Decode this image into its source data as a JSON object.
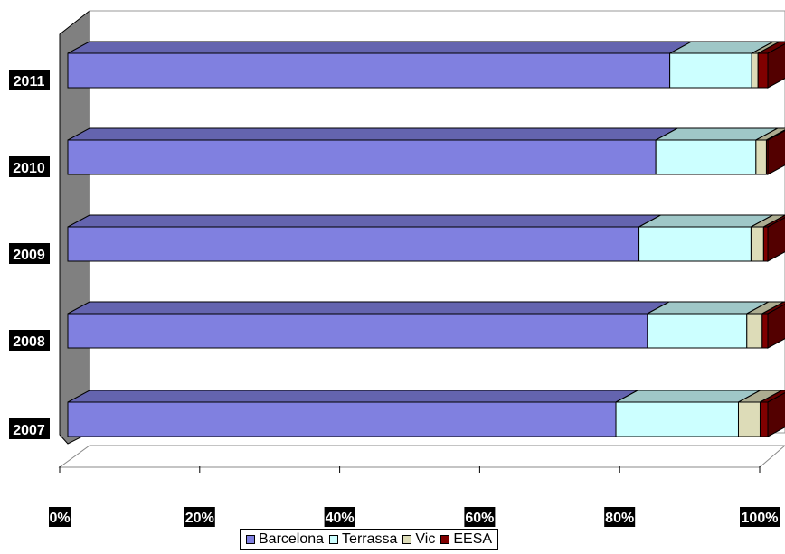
{
  "chart_data": {
    "type": "bar",
    "orientation": "horizontal",
    "stacked": "percent",
    "categories": [
      "2007",
      "2008",
      "2009",
      "2010",
      "2011"
    ],
    "series": [
      {
        "name": "Barcelona",
        "color": "#8080E0",
        "values": [
          78.3,
          82.8,
          81.6,
          84.0,
          86.0
        ]
      },
      {
        "name": "Terrassa",
        "color": "#CCFFFF",
        "values": [
          17.5,
          14.2,
          16.0,
          14.3,
          11.7
        ]
      },
      {
        "name": "Vic",
        "color": "#DDDCB8",
        "values": [
          3.1,
          2.2,
          1.8,
          1.5,
          0.9
        ]
      },
      {
        "name": "EESA",
        "color": "#800000",
        "values": [
          1.1,
          0.8,
          0.6,
          0.2,
          1.4
        ]
      }
    ],
    "xticks": [
      "0%",
      "20%",
      "40%",
      "60%",
      "80%",
      "100%"
    ],
    "xlim": [
      0,
      100
    ],
    "grid": false,
    "legend": "bottom"
  }
}
